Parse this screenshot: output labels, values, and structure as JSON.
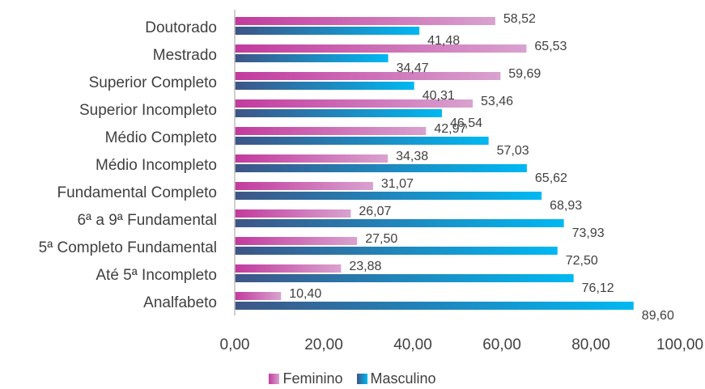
{
  "chart_data": {
    "type": "bar",
    "orientation": "horizontal",
    "categories": [
      "Doutorado",
      "Mestrado",
      "Superior Completo",
      "Superior Incompleto",
      "Médio Completo",
      "Médio Incompleto",
      "Fundamental Completo",
      "6ª a 9ª Fundamental",
      "5ª Completo Fundamental",
      "Até 5ª Incompleto",
      "Analfabeto"
    ],
    "series": [
      {
        "name": "Feminino",
        "values": [
          58.52,
          65.53,
          59.69,
          53.46,
          42.97,
          34.38,
          31.07,
          26.07,
          27.5,
          23.88,
          10.4
        ],
        "labels": [
          "58,52",
          "65,53",
          "59,69",
          "53,46",
          "42,97",
          "34,38",
          "31,07",
          "26,07",
          "27,50",
          "23,88",
          "10,40"
        ],
        "color_dark": "#c23a9e",
        "color_light": "#d9a2cf"
      },
      {
        "name": "Masculino",
        "values": [
          41.48,
          34.47,
          40.31,
          46.54,
          57.03,
          65.62,
          68.93,
          73.93,
          72.5,
          76.12,
          89.6
        ],
        "labels": [
          "41,48",
          "34,47",
          "40,31",
          "46,54",
          "57,03",
          "65,62",
          "68,93",
          "73,93",
          "72,50",
          "76,12",
          "89,60"
        ],
        "color_dark": "#3e5586",
        "color_light": "#00b8f2"
      }
    ],
    "x_ticks": [
      "0,00",
      "20,00",
      "40,00",
      "60,00",
      "80,00",
      "100,00"
    ],
    "xlim": [
      0,
      100
    ],
    "grid": false,
    "legend_position": "bottom"
  }
}
